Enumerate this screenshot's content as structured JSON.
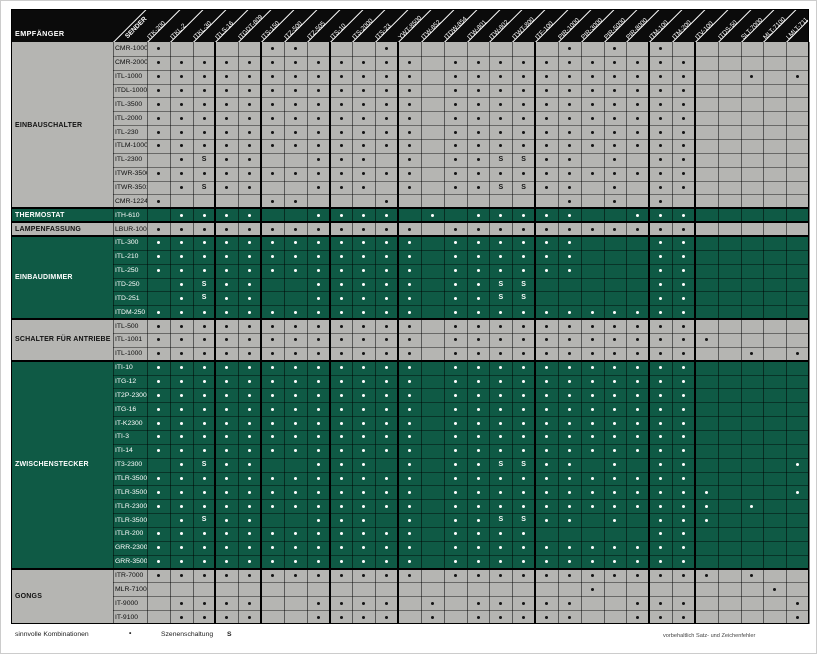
{
  "header": {
    "receiver_label": "EMPFÄNGER",
    "sender_label": "SENDER"
  },
  "columns": [
    "ITK-200",
    "ITKL-2",
    "ITKL-30",
    "ITLS-16",
    "ITGDT-809",
    "ITS-150",
    "ITZ-500",
    "ITZ-505",
    "ITS-10",
    "ITS-2000",
    "ITS-23",
    "YWT-8500",
    "ITW-852",
    "ITDW-854",
    "ITW-801",
    "ITW-802",
    "ITWT-800",
    "ITF-100",
    "PIR-1000",
    "PIR-3000",
    "PIR-5000",
    "PIR-8000",
    "ITM-100",
    "ITM-200",
    "ITV-100",
    "ITDS-50",
    "SLT-7000",
    "MLT-7100",
    "LMLT-711"
  ],
  "legend": {
    "dot_label": "sinnvolle Kombinationen",
    "dot_symbol": "•",
    "s_label": "Szenenschaltung",
    "s_symbol": "S"
  },
  "disclaimer": "vorbehaltlich Satz- und Zeichenfehler",
  "colors": {
    "green": "#0f5a45",
    "gray": "#b5b5b2",
    "header_bg": "#0b0b0b"
  },
  "thick_separators_after_columns": [
    3,
    5,
    8,
    11,
    17,
    22,
    24
  ],
  "sections": [
    {
      "label": "EINBAUSCHALTER",
      "theme": "gray",
      "rows": [
        {
          "name": "CMR-1000",
          "dots": [
            1,
            6,
            7,
            11,
            19,
            21,
            23
          ],
          "s": []
        },
        {
          "name": "CMR-2000",
          "dots": [
            1,
            2,
            3,
            4,
            5,
            6,
            7,
            8,
            9,
            10,
            11,
            12,
            14,
            15,
            16,
            17,
            18,
            19,
            20,
            21,
            22,
            23,
            24
          ],
          "s": []
        },
        {
          "name": "ITL-1000",
          "dots": [
            1,
            2,
            3,
            4,
            5,
            6,
            7,
            8,
            9,
            10,
            11,
            12,
            14,
            15,
            16,
            17,
            18,
            19,
            20,
            21,
            22,
            23,
            24,
            27,
            29
          ],
          "s": []
        },
        {
          "name": "ITDL-1000",
          "dots": [
            1,
            2,
            3,
            4,
            5,
            6,
            7,
            8,
            9,
            10,
            11,
            12,
            14,
            15,
            16,
            17,
            18,
            19,
            20,
            21,
            22,
            23,
            24
          ],
          "s": []
        },
        {
          "name": "ITL-3500",
          "dots": [
            1,
            2,
            3,
            4,
            5,
            6,
            7,
            8,
            9,
            10,
            11,
            12,
            14,
            15,
            16,
            17,
            18,
            19,
            20,
            21,
            22,
            23,
            24
          ],
          "s": []
        },
        {
          "name": "ITL-2000",
          "dots": [
            1,
            2,
            3,
            4,
            5,
            6,
            7,
            8,
            9,
            10,
            11,
            12,
            14,
            15,
            16,
            17,
            18,
            19,
            20,
            21,
            22,
            23,
            24
          ],
          "s": []
        },
        {
          "name": "ITL-230",
          "dots": [
            1,
            2,
            3,
            4,
            5,
            6,
            7,
            8,
            9,
            10,
            11,
            12,
            14,
            15,
            16,
            17,
            18,
            19,
            20,
            21,
            22,
            23,
            24
          ],
          "s": []
        },
        {
          "name": "ITLM-1000",
          "dots": [
            1,
            2,
            3,
            4,
            5,
            6,
            7,
            8,
            9,
            10,
            11,
            12,
            14,
            15,
            16,
            17,
            18,
            19,
            20,
            21,
            22,
            23,
            24
          ],
          "s": []
        },
        {
          "name": "ITL-2300",
          "dots": [
            2,
            4,
            5,
            8,
            9,
            10,
            12,
            14,
            15,
            18,
            19,
            21,
            23,
            24
          ],
          "s": [
            3,
            16,
            17
          ]
        },
        {
          "name": "ITWR-3500",
          "dots": [
            1,
            2,
            3,
            4,
            5,
            6,
            7,
            8,
            9,
            10,
            11,
            12,
            14,
            15,
            16,
            17,
            18,
            19,
            20,
            21,
            22,
            23,
            24
          ],
          "s": []
        },
        {
          "name": "ITWR-3501",
          "dots": [
            2,
            4,
            5,
            8,
            9,
            10,
            12,
            14,
            15,
            18,
            19,
            21,
            23,
            24
          ],
          "s": [
            3,
            16,
            17
          ]
        },
        {
          "name": "CMR-1224",
          "dots": [
            1,
            6,
            7,
            11,
            19,
            21,
            23
          ],
          "s": []
        }
      ]
    },
    {
      "label": "THERMOSTAT",
      "theme": "green",
      "rows": [
        {
          "name": "ITH-610",
          "dots": [
            2,
            3,
            4,
            5,
            8,
            9,
            10,
            11,
            13,
            15,
            16,
            17,
            18,
            19,
            22,
            23,
            24
          ],
          "s": []
        }
      ]
    },
    {
      "label": "LAMPENFASSUNG",
      "theme": "gray",
      "rows": [
        {
          "name": "LBUR-100",
          "dots": [
            1,
            2,
            3,
            4,
            5,
            6,
            7,
            8,
            9,
            10,
            11,
            12,
            14,
            15,
            16,
            17,
            18,
            19,
            20,
            21,
            22,
            23,
            24
          ],
          "s": []
        }
      ]
    },
    {
      "label": "EINBAUDIMMER",
      "theme": "green",
      "rows": [
        {
          "name": "ITL-300",
          "dots": [
            1,
            2,
            3,
            4,
            5,
            6,
            7,
            8,
            9,
            10,
            11,
            12,
            14,
            15,
            16,
            17,
            18,
            19,
            23,
            24
          ],
          "s": []
        },
        {
          "name": "ITL-210",
          "dots": [
            1,
            2,
            3,
            4,
            5,
            6,
            7,
            8,
            9,
            10,
            11,
            12,
            14,
            15,
            16,
            17,
            18,
            19,
            23,
            24
          ],
          "s": []
        },
        {
          "name": "ITL-250",
          "dots": [
            1,
            2,
            3,
            4,
            5,
            6,
            7,
            8,
            9,
            10,
            11,
            12,
            14,
            15,
            16,
            17,
            18,
            19,
            23,
            24
          ],
          "s": []
        },
        {
          "name": "ITD-250",
          "dots": [
            2,
            4,
            5,
            8,
            9,
            10,
            11,
            12,
            14,
            15,
            23,
            24
          ],
          "s": [
            3,
            16,
            17
          ]
        },
        {
          "name": "ITD-251",
          "dots": [
            2,
            4,
            5,
            8,
            9,
            10,
            11,
            12,
            14,
            15,
            23,
            24
          ],
          "s": [
            3,
            16,
            17
          ]
        },
        {
          "name": "ITDM-250",
          "dots": [
            1,
            2,
            3,
            4,
            5,
            6,
            7,
            8,
            9,
            10,
            11,
            12,
            14,
            15,
            16,
            17,
            18,
            19,
            20,
            21,
            22,
            23,
            24
          ],
          "s": []
        }
      ]
    },
    {
      "label": "SCHALTER FÜR ANTRIEBE",
      "theme": "gray",
      "rows": [
        {
          "name": "ITL-500",
          "dots": [
            1,
            2,
            3,
            4,
            5,
            6,
            7,
            8,
            9,
            10,
            11,
            12,
            14,
            15,
            16,
            17,
            18,
            19,
            20,
            21,
            22,
            23,
            24
          ],
          "s": []
        },
        {
          "name": "ITL-1001",
          "dots": [
            1,
            2,
            3,
            4,
            5,
            6,
            7,
            8,
            9,
            10,
            11,
            12,
            14,
            15,
            16,
            17,
            18,
            19,
            20,
            21,
            22,
            23,
            24,
            25
          ],
          "s": []
        },
        {
          "name": "ITL-1000",
          "dots": [
            1,
            2,
            3,
            4,
            5,
            6,
            7,
            8,
            9,
            10,
            11,
            12,
            14,
            15,
            16,
            17,
            18,
            19,
            20,
            21,
            22,
            23,
            24,
            27,
            29
          ],
          "s": []
        }
      ]
    },
    {
      "label": "ZWISCHENSTECKER",
      "theme": "green",
      "rows": [
        {
          "name": "ITI-10",
          "dots": [
            1,
            2,
            3,
            4,
            5,
            6,
            7,
            8,
            9,
            10,
            11,
            12,
            14,
            15,
            16,
            17,
            18,
            19,
            20,
            21,
            22,
            23,
            24
          ],
          "s": []
        },
        {
          "name": "ITG-12",
          "dots": [
            1,
            2,
            3,
            4,
            5,
            6,
            7,
            8,
            9,
            10,
            11,
            12,
            14,
            15,
            16,
            17,
            18,
            19,
            20,
            21,
            22,
            23,
            24
          ],
          "s": []
        },
        {
          "name": "IT2P-2300",
          "dots": [
            1,
            2,
            3,
            4,
            5,
            6,
            7,
            8,
            9,
            10,
            11,
            12,
            14,
            15,
            16,
            17,
            18,
            19,
            20,
            21,
            22,
            23,
            24
          ],
          "s": []
        },
        {
          "name": "ITG-16",
          "dots": [
            1,
            2,
            3,
            4,
            5,
            6,
            7,
            8,
            9,
            10,
            11,
            12,
            14,
            15,
            16,
            17,
            18,
            19,
            20,
            21,
            22,
            23,
            24
          ],
          "s": []
        },
        {
          "name": "IT-K2300",
          "dots": [
            1,
            2,
            3,
            4,
            5,
            6,
            7,
            8,
            9,
            10,
            11,
            12,
            14,
            15,
            16,
            17,
            18,
            19,
            20,
            21,
            22,
            23,
            24
          ],
          "s": []
        },
        {
          "name": "ITI-3",
          "dots": [
            1,
            2,
            3,
            4,
            5,
            6,
            7,
            8,
            9,
            10,
            11,
            12,
            14,
            15,
            16,
            17,
            18,
            19,
            20,
            21,
            22,
            23,
            24
          ],
          "s": []
        },
        {
          "name": "ITI-14",
          "dots": [
            1,
            2,
            3,
            4,
            5,
            6,
            7,
            8,
            9,
            10,
            11,
            12,
            14,
            15,
            16,
            17,
            18,
            19,
            20,
            21,
            22,
            23,
            24
          ],
          "s": []
        },
        {
          "name": "IT3-2300",
          "dots": [
            2,
            4,
            5,
            8,
            9,
            10,
            12,
            14,
            15,
            18,
            19,
            21,
            23,
            24,
            29
          ],
          "s": [
            3,
            16,
            17
          ]
        },
        {
          "name": "ITLR-3500",
          "dots": [
            1,
            2,
            3,
            4,
            5,
            6,
            7,
            8,
            9,
            10,
            11,
            12,
            14,
            15,
            16,
            17,
            18,
            19,
            20,
            21,
            22,
            23,
            24
          ],
          "s": []
        },
        {
          "name": "ITLR-3500T",
          "dots": [
            1,
            2,
            3,
            4,
            5,
            6,
            7,
            8,
            9,
            10,
            11,
            12,
            14,
            15,
            16,
            17,
            18,
            19,
            20,
            21,
            22,
            23,
            24,
            25,
            29
          ],
          "s": []
        },
        {
          "name": "ITLR-2300T",
          "dots": [
            1,
            2,
            3,
            4,
            5,
            6,
            7,
            8,
            9,
            10,
            11,
            12,
            14,
            15,
            16,
            17,
            18,
            19,
            20,
            21,
            22,
            23,
            24,
            25,
            27
          ],
          "s": []
        },
        {
          "name": "ITLR-3500S",
          "dots": [
            2,
            4,
            5,
            8,
            9,
            10,
            12,
            14,
            15,
            18,
            19,
            21,
            23,
            24,
            25
          ],
          "s": [
            3,
            16,
            17
          ]
        },
        {
          "name": "ITLR-200",
          "dots": [
            1,
            2,
            3,
            4,
            5,
            6,
            7,
            8,
            9,
            10,
            11,
            12,
            14,
            15,
            16,
            17,
            23,
            24
          ],
          "s": []
        },
        {
          "name": "GRR-2300",
          "dots": [
            1,
            2,
            3,
            4,
            5,
            6,
            7,
            8,
            9,
            10,
            11,
            12,
            14,
            15,
            16,
            17,
            18,
            19,
            20,
            21,
            22,
            23,
            24
          ],
          "s": []
        },
        {
          "name": "GRR-3500",
          "dots": [
            1,
            2,
            3,
            4,
            5,
            6,
            7,
            8,
            9,
            10,
            11,
            12,
            14,
            15,
            16,
            17,
            18,
            19,
            20,
            21,
            22,
            23,
            24
          ],
          "s": []
        }
      ]
    },
    {
      "label": "GONGS",
      "theme": "gray",
      "rows": [
        {
          "name": "ITR-7000",
          "dots": [
            1,
            2,
            3,
            4,
            5,
            6,
            7,
            8,
            9,
            10,
            11,
            12,
            14,
            15,
            16,
            17,
            18,
            19,
            20,
            21,
            22,
            23,
            24,
            25,
            27
          ],
          "s": []
        },
        {
          "name": "MLR-7100",
          "dots": [
            20,
            28
          ],
          "s": []
        },
        {
          "name": "IT-9000",
          "dots": [
            2,
            3,
            4,
            5,
            8,
            9,
            10,
            11,
            13,
            15,
            16,
            17,
            18,
            19,
            22,
            23,
            24,
            29
          ],
          "s": []
        },
        {
          "name": "IT-9100",
          "dots": [
            2,
            3,
            4,
            5,
            8,
            9,
            10,
            11,
            13,
            15,
            16,
            17,
            18,
            19,
            22,
            23,
            24,
            29
          ],
          "s": []
        }
      ]
    }
  ]
}
